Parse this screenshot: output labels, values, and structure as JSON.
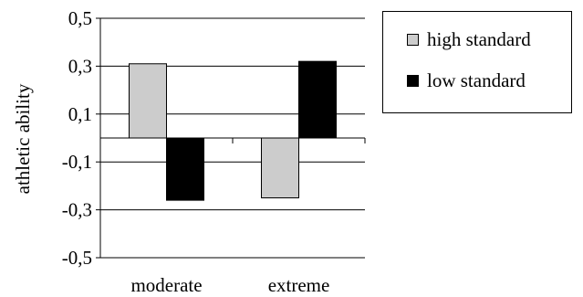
{
  "chart_data": {
    "type": "bar",
    "categories": [
      "moderate",
      "extreme"
    ],
    "series": [
      {
        "name": "high standard",
        "values": [
          0.31,
          -0.25
        ],
        "color": "#cccccc"
      },
      {
        "name": "low standard",
        "values": [
          -0.26,
          0.32
        ],
        "color": "#000000"
      }
    ],
    "title": "",
    "xlabel": "",
    "ylabel": "athletic ability",
    "ylim": [
      -0.5,
      0.5
    ],
    "yticks": [
      -0.5,
      -0.3,
      -0.1,
      0.1,
      0.3,
      0.5
    ],
    "ytick_labels": [
      "-0,5",
      "-0,3",
      "-0,1",
      "0,1",
      "0,3",
      "0,5"
    ],
    "grid": true,
    "legend_position": "right"
  }
}
